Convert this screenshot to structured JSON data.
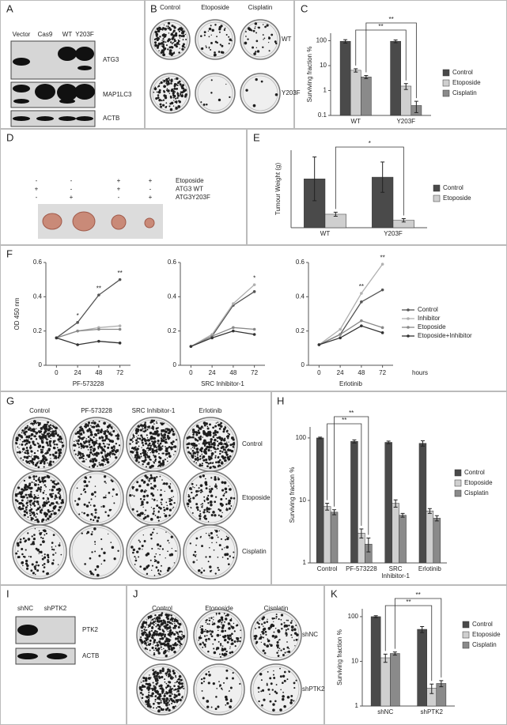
{
  "panel_letters": [
    "A",
    "B",
    "C",
    "D",
    "E",
    "F",
    "G",
    "H",
    "I",
    "J",
    "K"
  ],
  "panels": {
    "A": {
      "lanes": [
        "Vector",
        "Cas9",
        "WT",
        "Y203F"
      ],
      "bands": [
        "ATG3",
        "MAP1LC3",
        "ACTB"
      ]
    },
    "B": {
      "columns": [
        "Control",
        "Etoposide",
        "Cisplatin"
      ],
      "rows": [
        "WT",
        "Y203F"
      ]
    },
    "D": {
      "rows": [
        {
          "label": "Etoposide",
          "signs": [
            "-",
            "-",
            "+",
            "+"
          ]
        },
        {
          "label": "ATG3 WT",
          "signs": [
            "+",
            "-",
            "+",
            "-"
          ]
        },
        {
          "label": "ATG3Y203F",
          "signs": [
            "-",
            "+",
            "-",
            "+"
          ]
        }
      ]
    },
    "G": {
      "columns": [
        "Control",
        "PF-573228",
        "SRC Inhibitor-1",
        "Erlotinib"
      ],
      "rows": [
        "Control",
        "Etoposide",
        "Cisplatin"
      ]
    },
    "I": {
      "lanes": [
        "shNC",
        "shPTK2"
      ],
      "bands": [
        "PTK2",
        "ACTB"
      ]
    },
    "J": {
      "columns": [
        "Control",
        "Etoposide",
        "Cisplatin"
      ],
      "rows": [
        "shNC",
        "shPTK2"
      ]
    }
  },
  "chart_data": [
    {
      "type": "bar",
      "categories": [
        "WT",
        "Y203F"
      ],
      "series": [
        {
          "name": "Control",
          "color": "#4a4a4a",
          "values": [
            95,
            95
          ],
          "errors": [
            15,
            12
          ]
        },
        {
          "name": "Etoposide",
          "color": "#cfcfcf",
          "values": [
            6.5,
            1.5
          ],
          "errors": [
            1,
            0.4
          ]
        },
        {
          "name": "Cisplatin",
          "color": "#8a8a8a",
          "values": [
            3.5,
            0.25
          ],
          "errors": [
            0.5,
            0.12
          ]
        }
      ],
      "ylabel": "Surviving fraction %",
      "ylim": [
        0.1,
        200
      ],
      "yticks": [
        0.1,
        1,
        10,
        100
      ],
      "log_scale": true,
      "legend": "right",
      "annotations": [
        "**",
        "**"
      ]
    },
    {
      "type": "bar",
      "categories": [
        "WT",
        "Y203F"
      ],
      "series": [
        {
          "name": "Control",
          "color": "#4a4a4a",
          "values": [
            1.45,
            1.5
          ],
          "errors": [
            0.65,
            0.45
          ]
        },
        {
          "name": "Etoposide",
          "color": "#cfcfcf",
          "values": [
            0.4,
            0.22
          ],
          "errors": [
            0.06,
            0.05
          ]
        }
      ],
      "ylabel": "Tumour Weight (g)",
      "ylim": [
        0,
        2.3
      ],
      "log_scale": false,
      "legend": "right",
      "annotations": [
        "*"
      ]
    },
    {
      "type": "line",
      "x": [
        0,
        24,
        48,
        72
      ],
      "xlim": [
        -12,
        84
      ],
      "xticks": [
        0,
        24,
        48,
        72
      ],
      "xlabel": "PF-573228",
      "ylabel": "OD 450 nm",
      "ylim": [
        0,
        0.6
      ],
      "yticks": [
        0,
        0.2,
        0.4,
        0.6
      ],
      "series": [
        {
          "color": "#555555",
          "values": [
            0.16,
            0.25,
            0.41,
            0.5
          ]
        },
        {
          "color": "#b0b0b0",
          "values": [
            0.16,
            0.2,
            0.22,
            0.23
          ]
        },
        {
          "color": "#888888",
          "values": [
            0.16,
            0.2,
            0.21,
            0.21
          ]
        },
        {
          "color": "#333333",
          "values": [
            0.16,
            0.12,
            0.14,
            0.13
          ]
        }
      ],
      "annotations": [
        {
          "x": 24,
          "text": "*"
        },
        {
          "x": 48,
          "text": "**"
        },
        {
          "x": 72,
          "text": "**"
        }
      ]
    },
    {
      "type": "line",
      "x": [
        0,
        24,
        48,
        72
      ],
      "xlim": [
        -12,
        84
      ],
      "xticks": [
        0,
        24,
        48,
        72
      ],
      "xlabel": "SRC Inhibitor-1",
      "ylim": [
        0,
        0.6
      ],
      "yticks": [
        0,
        0.2,
        0.4,
        0.6
      ],
      "series": [
        {
          "color": "#555555",
          "values": [
            0.11,
            0.17,
            0.35,
            0.43
          ]
        },
        {
          "color": "#b0b0b0",
          "values": [
            0.11,
            0.18,
            0.36,
            0.47
          ]
        },
        {
          "color": "#888888",
          "values": [
            0.11,
            0.17,
            0.22,
            0.21
          ]
        },
        {
          "color": "#333333",
          "values": [
            0.11,
            0.16,
            0.2,
            0.18
          ]
        }
      ],
      "annotations": [
        {
          "x": 72,
          "text": "*"
        }
      ]
    },
    {
      "type": "line",
      "x": [
        0,
        24,
        48,
        72
      ],
      "xlim": [
        -12,
        84
      ],
      "xticks": [
        0,
        24,
        48,
        72
      ],
      "xlabel": "Erlotinib",
      "xnote": "hours",
      "ylim": [
        0,
        0.6
      ],
      "yticks": [
        0,
        0.2,
        0.4,
        0.6
      ],
      "legend": "right",
      "series": [
        {
          "name": "Control",
          "color": "#555555",
          "values": [
            0.12,
            0.18,
            0.37,
            0.44
          ]
        },
        {
          "name": "Inhibitor",
          "color": "#b0b0b0",
          "values": [
            0.12,
            0.21,
            0.42,
            0.59
          ]
        },
        {
          "name": "Etoposide",
          "color": "#888888",
          "values": [
            0.12,
            0.18,
            0.26,
            0.22
          ]
        },
        {
          "name": "Etoposide+Inhibitor",
          "color": "#333333",
          "values": [
            0.12,
            0.16,
            0.23,
            0.19
          ]
        }
      ],
      "annotations": [
        {
          "x": 48,
          "text": "**"
        },
        {
          "x": 72,
          "text": "**"
        }
      ]
    },
    {
      "type": "bar",
      "categories": [
        "Control",
        "PF-573228",
        "SRC Inhibitor-1",
        "Erlotinib"
      ],
      "series": [
        {
          "name": "Control",
          "color": "#4a4a4a",
          "values": [
            100,
            88,
            85,
            82
          ],
          "errors": [
            3,
            5,
            4,
            8
          ]
        },
        {
          "name": "Etoposide",
          "color": "#cfcfcf",
          "values": [
            8,
            3,
            9,
            6.8
          ],
          "errors": [
            1,
            0.5,
            1.2,
            0.6
          ]
        },
        {
          "name": "Cisplatin",
          "color": "#8a8a8a",
          "values": [
            6.5,
            2,
            5.8,
            5.2
          ],
          "errors": [
            0.6,
            0.5,
            0.4,
            0.5
          ]
        }
      ],
      "ylabel": "Surviving fraction %",
      "ylim": [
        1,
        150
      ],
      "yticks": [
        1,
        10,
        100
      ],
      "log_scale": true,
      "legend": "right",
      "annotations": [
        "**",
        "**"
      ]
    },
    {
      "type": "bar",
      "categories": [
        "shNC",
        "shPTK2"
      ],
      "series": [
        {
          "name": "Control",
          "color": "#4a4a4a",
          "values": [
            100,
            52
          ],
          "errors": [
            5,
            8
          ]
        },
        {
          "name": "Etoposide",
          "color": "#cfcfcf",
          "values": [
            12,
            2.5
          ],
          "errors": [
            2.5,
            0.6
          ]
        },
        {
          "name": "Cisplatin",
          "color": "#8a8a8a",
          "values": [
            15,
            3.2
          ],
          "errors": [
            1.2,
            0.5
          ]
        }
      ],
      "ylabel": "Surviving fraction %",
      "ylim": [
        1,
        150
      ],
      "yticks": [
        1,
        10,
        100
      ],
      "log_scale": true,
      "legend": "right",
      "annotations": [
        "**",
        "**"
      ]
    }
  ]
}
